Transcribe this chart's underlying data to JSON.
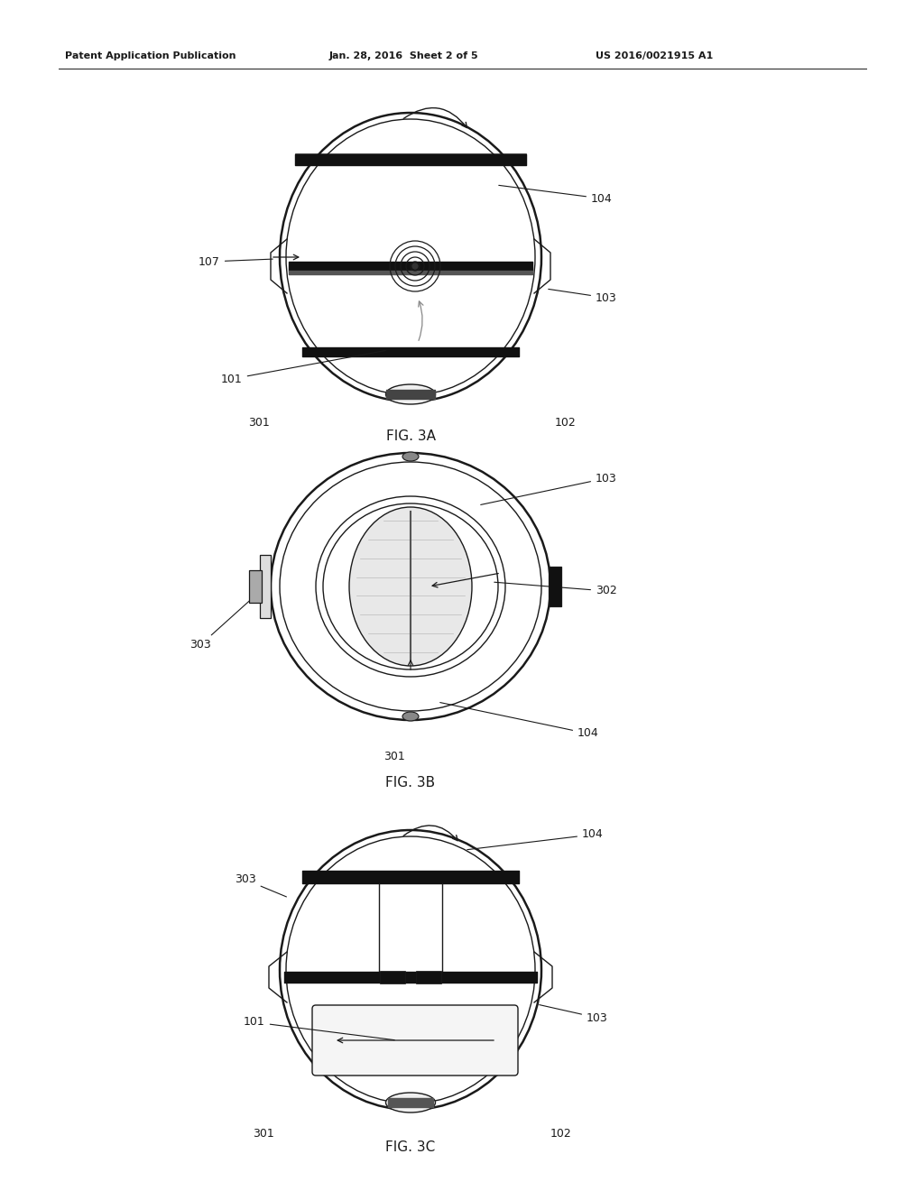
{
  "bg_color": "#ffffff",
  "header_left": "Patent Application Publication",
  "header_mid": "Jan. 28, 2016  Sheet 2 of 5",
  "header_right": "US 2016/0021915 A1",
  "fig3a_label": "FIG. 3A",
  "fig3b_label": "FIG. 3B",
  "fig3c_label": "FIG. 3C",
  "line_color": "#1a1a1a",
  "label_color": "#1a1a1a"
}
